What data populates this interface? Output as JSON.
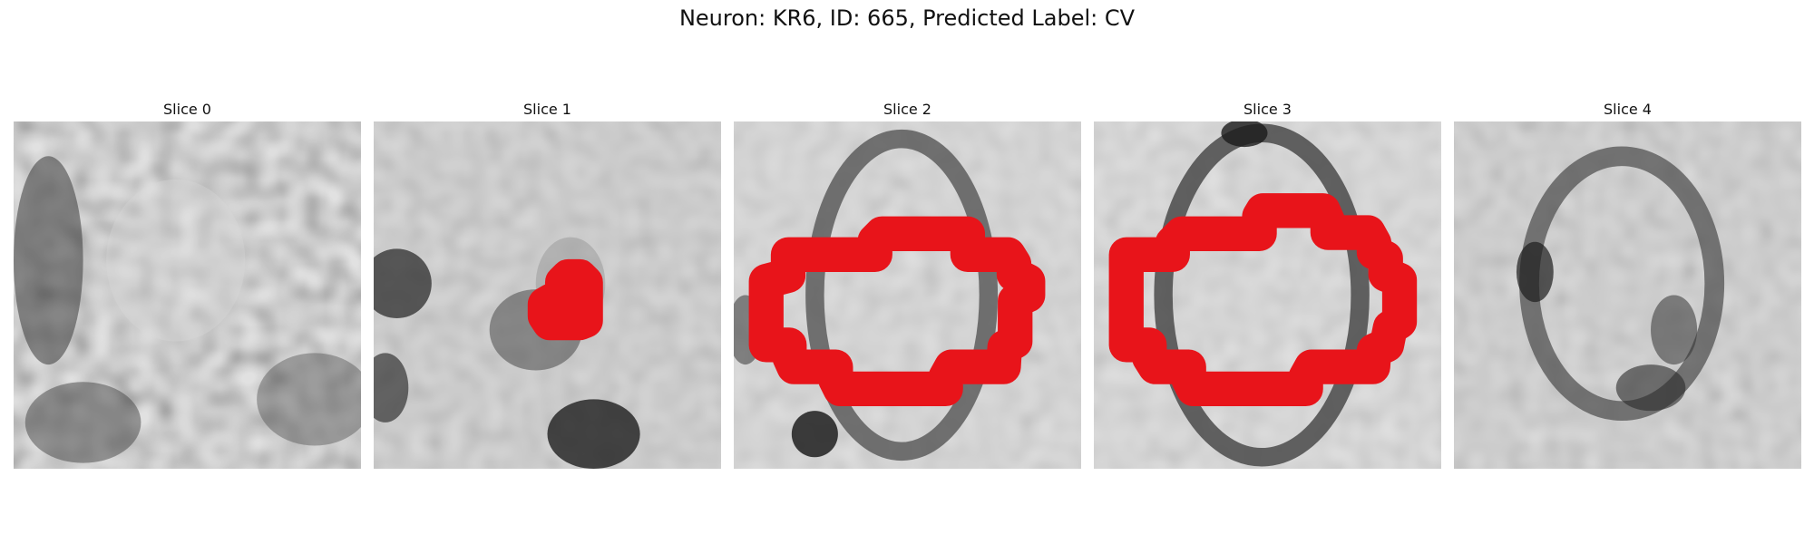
{
  "figure": {
    "title": "Neuron: KR6, ID: 665, Predicted Label: CV"
  },
  "slices": [
    {
      "title": "Slice 0",
      "image": "grayscale-noise-texture",
      "has_contour": false
    },
    {
      "title": "Slice 1",
      "image": "grayscale-blob-texture-small-contour",
      "has_contour": true
    },
    {
      "title": "Slice 2",
      "image": "grayscale-oval-ring-texture",
      "has_contour": true
    },
    {
      "title": "Slice 3",
      "image": "grayscale-oval-ring-texture",
      "has_contour": true
    },
    {
      "title": "Slice 4",
      "image": "grayscale-crescent-texture",
      "has_contour": false
    }
  ],
  "colors": {
    "contour": "#e8141a",
    "background": "#ffffff"
  }
}
